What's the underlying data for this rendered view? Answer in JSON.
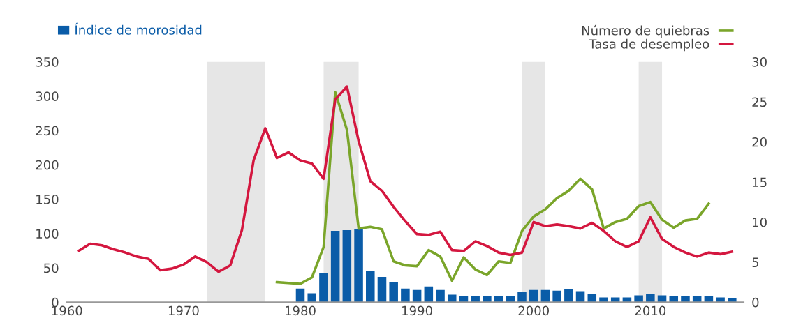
{
  "chart_data": {
    "type": "bar",
    "xlim": [
      1960,
      2018
    ],
    "xticks": [
      1960,
      1970,
      1980,
      1990,
      2000,
      2010
    ],
    "ylim": [
      0,
      350
    ],
    "yticks": [
      0,
      50,
      100,
      150,
      200,
      250,
      300,
      350
    ],
    "y2lim": [
      0,
      30
    ],
    "y2ticks": [
      0,
      5,
      10,
      15,
      20,
      25,
      30
    ],
    "grid": false,
    "legend": "top",
    "series": [
      {
        "name": "Índice de morosidad",
        "type": "bar",
        "color": "#0a5ca8",
        "x": [
          1980,
          1981,
          1982,
          1983,
          1984,
          1985,
          1986,
          1987,
          1988,
          1989,
          1990,
          1991,
          1992,
          1993,
          1994,
          1995,
          1996,
          1997,
          1998,
          1999,
          2000,
          2001,
          2002,
          2003,
          2004,
          2005,
          2006,
          2007,
          2008,
          2009,
          2010,
          2011,
          2012,
          2013,
          2014,
          2015,
          2016,
          2017
        ],
        "values": [
          20,
          13,
          42,
          104,
          105,
          106,
          45,
          37,
          29,
          20,
          18,
          23,
          18,
          11,
          9,
          9,
          9,
          9,
          9,
          15,
          18,
          18,
          17,
          19,
          16,
          12,
          7,
          7,
          7,
          10,
          12,
          10,
          9,
          9,
          9,
          9,
          7,
          6
        ]
      },
      {
        "name": "Número de quiebras",
        "type": "line",
        "axis": "y2",
        "color": "#7aa52a",
        "x": [
          1978,
          1979,
          1980,
          1981,
          1982,
          1983,
          1984,
          1985,
          1986,
          1987,
          1988,
          1989,
          1990,
          1991,
          1992,
          1993,
          1994,
          1995,
          1996,
          1997,
          1998,
          1999,
          2000,
          2001,
          2002,
          2003,
          2004,
          2005,
          2006,
          2007,
          2008,
          2009,
          2010,
          2011,
          2012,
          2013,
          2014,
          2015
        ],
        "values": [
          2.5,
          2.4,
          2.3,
          3.1,
          6.9,
          26.2,
          21.5,
          9.2,
          9.4,
          9.1,
          5.1,
          4.6,
          4.5,
          6.5,
          5.7,
          2.7,
          5.6,
          4.1,
          3.4,
          5.1,
          4.9,
          8.9,
          10.7,
          11.6,
          13.0,
          13.9,
          15.4,
          14.1,
          9.2,
          10.0,
          10.4,
          12.0,
          12.5,
          10.3,
          9.3,
          10.2,
          10.4,
          12.3
        ]
      },
      {
        "name": "Tasa de desempleo",
        "type": "line",
        "axis": "y2",
        "color": "#d4173f",
        "x": [
          1961,
          1962,
          1963,
          1964,
          1965,
          1966,
          1967,
          1968,
          1969,
          1970,
          1971,
          1972,
          1973,
          1974,
          1975,
          1976,
          1977,
          1978,
          1979,
          1980,
          1981,
          1982,
          1983,
          1984,
          1985,
          1986,
          1987,
          1988,
          1989,
          1990,
          1991,
          1992,
          1993,
          1994,
          1995,
          1996,
          1997,
          1998,
          1999,
          2000,
          2001,
          2002,
          2003,
          2004,
          2005,
          2006,
          2007,
          2008,
          2009,
          2010,
          2011,
          2012,
          2013,
          2014,
          2015,
          2016,
          2017
        ],
        "values": [
          6.4,
          7.3,
          7.1,
          6.6,
          6.2,
          5.7,
          5.4,
          4.0,
          4.2,
          4.7,
          5.7,
          5.0,
          3.8,
          4.6,
          9.0,
          17.7,
          21.7,
          18.0,
          18.7,
          17.7,
          17.3,
          15.4,
          25.3,
          26.9,
          20.1,
          15.1,
          13.9,
          11.9,
          10.1,
          8.5,
          8.4,
          8.8,
          6.5,
          6.4,
          7.6,
          7.0,
          6.2,
          5.9,
          6.2,
          10.0,
          9.5,
          9.7,
          9.5,
          9.2,
          9.9,
          8.9,
          7.6,
          6.9,
          7.6,
          10.6,
          7.9,
          6.9,
          6.2,
          5.7,
          6.2,
          6.0,
          6.3
        ]
      }
    ],
    "bands": [
      {
        "axis": "x",
        "from": 1972,
        "to": 1977,
        "color": "#e6e6e6"
      },
      {
        "axis": "x",
        "from": 1982,
        "to": 1985,
        "color": "#e6e6e6"
      },
      {
        "axis": "x",
        "from": 1999,
        "to": 2001,
        "color": "#e6e6e6"
      },
      {
        "axis": "x",
        "from": 2009,
        "to": 2011,
        "color": "#e6e6e6"
      }
    ]
  }
}
